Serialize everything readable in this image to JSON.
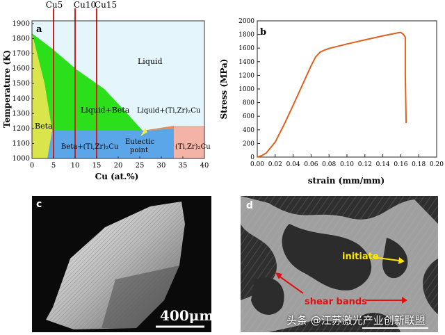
{
  "panel_a": {
    "label": "a",
    "ylabel": "Temperature (K)",
    "xlabel": "Cu (at.%)",
    "xticks": [
      "0",
      "5",
      "10",
      "15",
      "20",
      "25",
      "30",
      "35",
      "40"
    ],
    "yticks": [
      "1000",
      "1100",
      "1200",
      "1300",
      "1400",
      "1500",
      "1600",
      "1700",
      "1800",
      "1900"
    ],
    "top_labels": [
      "Cu5",
      "Cu10",
      "Cu15"
    ],
    "regions": {
      "liquid": "Liquid",
      "liquid_beta": "Liquid+Beta",
      "beta": "Beta",
      "liquid_cu": "Liquid+(Ti,Zr)₂Cu",
      "beta_cu": "Beta+(Ti,Zr)₂Cu",
      "eutectic": "Eutectic\npoint",
      "cu_phase": "(Ti,Zr)₂Cu"
    },
    "colors": {
      "liquid": "#e4f6fb",
      "liquid_beta": "#2be01a",
      "beta": "#d9e54a",
      "beta_cu": "#5aa6e8",
      "cu_phase": "#f3b3a6",
      "lines": "#d0201c"
    }
  },
  "panel_b": {
    "label": "b",
    "ylabel": "Stress (MPa)",
    "xlabel": "strain (mm/mm)",
    "chart_data": {
      "type": "line",
      "x": [
        0.0,
        0.005,
        0.01,
        0.02,
        0.03,
        0.04,
        0.05,
        0.06,
        0.065,
        0.07,
        0.075,
        0.08,
        0.1,
        0.12,
        0.14,
        0.155,
        0.16,
        0.163,
        0.165,
        0.165,
        0.166
      ],
      "y": [
        0,
        20,
        60,
        220,
        480,
        760,
        1050,
        1340,
        1470,
        1540,
        1570,
        1595,
        1660,
        1720,
        1780,
        1820,
        1830,
        1800,
        1760,
        1200,
        500
      ],
      "xlim": [
        0.0,
        0.2
      ],
      "ylim": [
        0,
        2000
      ],
      "xticks": [
        "0.00",
        "0.02",
        "0.04",
        "0.06",
        "0.08",
        "0.10",
        "0.12",
        "0.14",
        "0.16",
        "0.18",
        "0.20"
      ],
      "yticks": [
        "0",
        "200",
        "400",
        "600",
        "800",
        "1000",
        "1200",
        "1400",
        "1600",
        "1800",
        "2000"
      ],
      "color": "#e0601c"
    }
  },
  "panel_c": {
    "label": "c",
    "scale": "400μm"
  },
  "panel_d": {
    "label": "d",
    "initiate": "initiate",
    "shear": "shear bands"
  },
  "watermark": "头条 @江苏激光产业创新联盟"
}
